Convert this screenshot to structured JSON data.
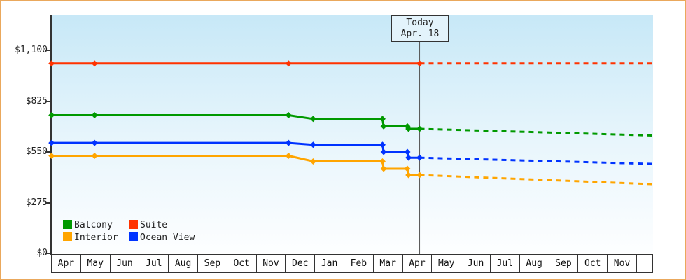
{
  "window": {
    "frame_border_color": "#EAA85C",
    "background": "#FFFFFF"
  },
  "chart_data": {
    "type": "line",
    "title": "",
    "grid": false,
    "legend_position": "bottom-left-inside",
    "today_label": {
      "line1": "Today",
      "line2": "Apr. 18"
    },
    "today_t": 12.58,
    "x_axis": {
      "unit": "months_from_chart_start",
      "t_range": [
        0,
        20.57
      ],
      "tick_labels": [
        "Apr",
        "May",
        "Jun",
        "Jul",
        "Aug",
        "Sep",
        "Oct",
        "Nov",
        "Dec",
        "Jan",
        "Feb",
        "Mar",
        "Apr",
        "May",
        "Jun",
        "Jul",
        "Aug",
        "Sep",
        "Oct",
        "Nov"
      ]
    },
    "y_axis": {
      "range": [
        0,
        1100
      ],
      "tick_values": [
        0,
        275,
        550,
        825,
        1100
      ],
      "tick_labels": [
        "$0",
        "$275",
        "$550",
        "$825",
        "$1,100"
      ]
    },
    "legend": [
      {
        "label": "Balcony",
        "color": "#009900"
      },
      {
        "label": "Suite",
        "color": "#FF3300"
      },
      {
        "label": "Interior",
        "color": "#FFA500"
      },
      {
        "label": "Ocean View",
        "color": "#0033FF"
      }
    ],
    "series": [
      {
        "name": "Suite",
        "color": "#FF3300",
        "points": [
          {
            "t": 0,
            "price": 1029
          },
          {
            "t": 1.47,
            "price": 1029
          },
          {
            "t": 8.1,
            "price": 1029
          },
          {
            "t": 12.58,
            "price": 1029
          }
        ],
        "forecast": [
          {
            "t": 12.58,
            "price": 1029
          },
          {
            "t": 20.57,
            "price": 1029
          }
        ]
      },
      {
        "name": "Balcony",
        "color": "#009900",
        "points": [
          {
            "t": 0,
            "price": 749
          },
          {
            "t": 1.47,
            "price": 749
          },
          {
            "t": 8.1,
            "price": 749
          },
          {
            "t": 8.94,
            "price": 729
          },
          {
            "t": 11.31,
            "price": 729
          },
          {
            "t": 11.35,
            "price": 689
          },
          {
            "t": 12.16,
            "price": 689
          },
          {
            "t": 12.2,
            "price": 675
          },
          {
            "t": 12.58,
            "price": 675
          }
        ],
        "forecast": [
          {
            "t": 12.58,
            "price": 675
          },
          {
            "t": 20.57,
            "price": 639
          }
        ]
      },
      {
        "name": "Ocean View",
        "color": "#0033FF",
        "points": [
          {
            "t": 0,
            "price": 599
          },
          {
            "t": 1.47,
            "price": 599
          },
          {
            "t": 8.1,
            "price": 599
          },
          {
            "t": 8.94,
            "price": 589
          },
          {
            "t": 11.31,
            "price": 589
          },
          {
            "t": 11.35,
            "price": 550
          },
          {
            "t": 12.16,
            "price": 550
          },
          {
            "t": 12.2,
            "price": 519
          },
          {
            "t": 12.58,
            "price": 519
          }
        ],
        "forecast": [
          {
            "t": 12.58,
            "price": 519
          },
          {
            "t": 20.57,
            "price": 485
          }
        ]
      },
      {
        "name": "Interior",
        "color": "#FFA500",
        "points": [
          {
            "t": 0,
            "price": 529
          },
          {
            "t": 1.47,
            "price": 529
          },
          {
            "t": 8.1,
            "price": 529
          },
          {
            "t": 8.94,
            "price": 499
          },
          {
            "t": 11.31,
            "price": 499
          },
          {
            "t": 11.35,
            "price": 459
          },
          {
            "t": 12.16,
            "price": 459
          },
          {
            "t": 12.2,
            "price": 425
          },
          {
            "t": 12.58,
            "price": 425
          }
        ],
        "forecast": [
          {
            "t": 12.58,
            "price": 425
          },
          {
            "t": 20.57,
            "price": 375
          }
        ]
      }
    ]
  }
}
